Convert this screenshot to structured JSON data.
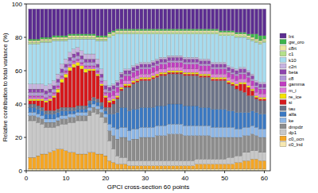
{
  "chart_data": {
    "type": "bar",
    "stacked": true,
    "legend": "right",
    "grid": false,
    "x_label": "GPCI cross-section  60 points",
    "y_label": "Relative contribution to total variance (%)",
    "x": [
      1,
      2,
      3,
      4,
      5,
      6,
      7,
      8,
      9,
      10,
      11,
      12,
      13,
      14,
      15,
      16,
      17,
      18,
      19,
      20,
      21,
      22,
      23,
      24,
      25,
      26,
      27,
      28,
      29,
      30,
      31,
      32,
      33,
      34,
      35,
      36,
      37,
      38,
      39,
      40,
      41,
      42,
      43,
      44,
      45,
      46,
      47,
      48,
      49,
      50,
      51,
      52,
      53,
      54,
      55,
      56,
      57,
      58,
      59,
      60
    ],
    "xlim": [
      0,
      61.5
    ],
    "xticks": [
      0,
      10,
      20,
      30,
      40,
      50,
      60
    ],
    "ylim": [
      0,
      100
    ],
    "yticks": [
      0,
      20,
      40,
      60,
      80,
      100
    ],
    "series": [
      {
        "name": "Int",
        "color": "#5c2d91",
        "values": [
          18,
          18,
          18,
          17,
          17,
          17,
          16,
          16,
          16,
          16,
          15,
          15,
          15,
          15,
          15,
          15,
          15,
          16,
          16,
          16,
          14,
          13,
          12,
          12,
          12,
          12,
          12,
          12,
          12,
          12,
          12,
          12,
          12,
          12,
          12,
          12,
          12,
          12,
          12,
          12,
          12,
          12,
          12,
          12,
          12,
          12,
          12,
          12,
          13,
          13,
          13,
          13,
          14,
          14,
          14,
          15,
          15,
          15,
          16,
          16
        ]
      },
      {
        "name": "gw_oro",
        "color": "#3cb44b",
        "values": [
          1,
          1,
          1,
          1,
          1,
          1,
          1,
          1,
          1,
          1,
          1,
          1,
          1,
          1,
          1,
          1,
          1,
          1,
          1,
          1,
          1,
          1,
          1,
          1,
          1,
          1,
          1,
          1,
          1,
          1,
          1,
          1,
          1,
          1,
          1,
          1,
          1,
          1,
          1,
          1,
          1,
          1,
          1,
          1,
          1,
          1,
          1,
          1,
          1,
          1,
          1,
          1,
          1,
          1,
          1,
          1,
          2,
          3,
          3,
          2
        ]
      },
      {
        "name": "c8rt",
        "color": "#eee8a0",
        "values": [
          1,
          1,
          1,
          1,
          1,
          1,
          1,
          1,
          1,
          1,
          1,
          1,
          1,
          1,
          1,
          1,
          1,
          1,
          1,
          1,
          1,
          1,
          1,
          1,
          1,
          1,
          1,
          1,
          1,
          1,
          1,
          1,
          1,
          1,
          1,
          1,
          1,
          1,
          1,
          1,
          1,
          1,
          1,
          1,
          1,
          1,
          1,
          1,
          1,
          1,
          1,
          1,
          1,
          1,
          1,
          1,
          1,
          1,
          1,
          1
        ]
      },
      {
        "name": "c1",
        "color": "#b5e08a",
        "values": [
          1,
          1,
          1,
          1,
          1,
          1,
          1,
          1,
          1,
          1,
          1,
          1,
          1,
          1,
          1,
          1,
          1,
          1,
          1,
          1,
          1,
          1,
          1,
          1,
          1,
          1,
          1,
          1,
          1,
          1,
          1,
          1,
          1,
          1,
          1,
          1,
          1,
          1,
          1,
          1,
          1,
          1,
          1,
          1,
          1,
          1,
          1,
          1,
          1,
          1,
          1,
          1,
          1,
          1,
          1,
          1,
          1,
          1,
          1,
          1
        ]
      },
      {
        "name": "k10",
        "color": "#a6dcef",
        "values": [
          24,
          24,
          24,
          25,
          26,
          25,
          24,
          20,
          14,
          11,
          8,
          6,
          5,
          7,
          9,
          9,
          9,
          11,
          17,
          24,
          29,
          29,
          28,
          23,
          21,
          21,
          19,
          18,
          17,
          17,
          17,
          16,
          15,
          14,
          14,
          13,
          13,
          13,
          13,
          14,
          14,
          14,
          14,
          15,
          15,
          15,
          17,
          17,
          16,
          16,
          18,
          19,
          19,
          18,
          18,
          19,
          20,
          23,
          23,
          24
        ]
      },
      {
        "name": "c2rt",
        "color": "#c7b3e0",
        "values": [
          3,
          3,
          3,
          3,
          3,
          3,
          3,
          3,
          3,
          3,
          3,
          3,
          3,
          3,
          3,
          3,
          3,
          3,
          3,
          3,
          1,
          1,
          1,
          1,
          1,
          1,
          1,
          1,
          1,
          1,
          1,
          1,
          1,
          1,
          1,
          1,
          1,
          1,
          1,
          1,
          1,
          1,
          1,
          1,
          1,
          1,
          1,
          1,
          1,
          1,
          1,
          1,
          1,
          1,
          1,
          1,
          1,
          1,
          1,
          1
        ]
      },
      {
        "name": "beta",
        "color": "#8e44ad",
        "values": [
          2,
          2,
          2,
          2,
          2,
          2,
          2,
          2,
          2,
          2,
          2,
          2,
          2,
          2,
          2,
          2,
          2,
          2,
          2,
          2,
          2,
          2,
          2,
          2,
          2,
          2,
          2,
          2,
          2,
          2,
          2,
          2,
          2,
          2,
          2,
          2,
          2,
          2,
          2,
          2,
          2,
          2,
          2,
          2,
          2,
          2,
          2,
          2,
          2,
          2,
          2,
          2,
          2,
          2,
          2,
          2,
          2,
          2,
          2,
          2
        ]
      },
      {
        "name": "c8",
        "color": "#b197d8",
        "values": [
          2,
          2,
          2,
          2,
          2,
          2,
          2,
          2,
          2,
          2,
          2,
          2,
          2,
          2,
          2,
          2,
          2,
          2,
          2,
          2,
          1,
          1,
          1,
          1,
          1,
          1,
          1,
          1,
          1,
          1,
          1,
          1,
          1,
          1,
          1,
          1,
          1,
          1,
          1,
          1,
          1,
          1,
          1,
          1,
          1,
          1,
          1,
          1,
          1,
          1,
          1,
          1,
          1,
          1,
          1,
          1,
          1,
          1,
          1,
          1
        ]
      },
      {
        "name": "gamma",
        "color": "#c03cc0",
        "values": [
          1,
          1,
          1,
          1,
          1,
          1,
          1,
          1,
          1,
          1,
          1,
          1,
          1,
          1,
          1,
          1,
          1,
          1,
          1,
          1,
          3,
          3,
          3,
          3,
          3,
          3,
          3,
          3,
          3,
          3,
          3,
          3,
          3,
          3,
          3,
          3,
          3,
          3,
          3,
          3,
          3,
          3,
          3,
          3,
          3,
          3,
          3,
          3,
          3,
          3,
          3,
          3,
          3,
          3,
          3,
          3,
          3,
          3,
          3,
          3
        ]
      },
      {
        "name": "m_i",
        "color": "#e07ad8",
        "values": [
          1,
          1,
          1,
          1,
          1,
          1,
          1,
          1,
          1,
          1,
          1,
          1,
          1,
          1,
          1,
          1,
          1,
          1,
          1,
          1,
          2,
          2,
          2,
          2,
          2,
          2,
          2,
          2,
          2,
          2,
          2,
          2,
          2,
          2,
          2,
          2,
          2,
          2,
          2,
          2,
          2,
          2,
          2,
          2,
          2,
          2,
          2,
          2,
          2,
          2,
          2,
          2,
          2,
          2,
          2,
          2,
          2,
          2,
          2,
          2
        ]
      },
      {
        "name": "re_ice",
        "color": "#f5e400",
        "values": [
          1,
          1,
          1,
          1,
          1,
          1,
          1,
          2,
          2,
          2,
          2,
          2,
          2,
          2,
          2,
          1,
          1,
          1,
          1,
          1,
          1,
          1,
          1,
          1,
          1,
          1,
          1,
          1,
          1,
          1,
          1,
          1,
          1,
          1,
          1,
          1,
          1,
          1,
          1,
          1,
          1,
          1,
          1,
          1,
          1,
          1,
          1,
          1,
          1,
          1,
          1,
          1,
          1,
          1,
          1,
          1,
          1,
          1,
          1,
          1
        ]
      },
      {
        "name": "si",
        "color": "#d7191c",
        "values": [
          2,
          2,
          3,
          4,
          5,
          6,
          8,
          10,
          15,
          18,
          22,
          24,
          24,
          22,
          20,
          18,
          16,
          14,
          10,
          6,
          3,
          2,
          1,
          1,
          1,
          1,
          1,
          1,
          1,
          1,
          1,
          1,
          1,
          1,
          1,
          1,
          1,
          1,
          1,
          1,
          1,
          1,
          1,
          1,
          1,
          1,
          1,
          1,
          1,
          1,
          1,
          1,
          2,
          4,
          5,
          5,
          3,
          1,
          1,
          1
        ]
      },
      {
        "name": "tau",
        "color": "#6b7388",
        "values": [
          2,
          2,
          2,
          2,
          2,
          2,
          2,
          2,
          2,
          2,
          2,
          2,
          2,
          2,
          2,
          2,
          2,
          2,
          2,
          2,
          4,
          6,
          8,
          10,
          12,
          14,
          15,
          16,
          16,
          16,
          16,
          17,
          17,
          18,
          18,
          18,
          18,
          18,
          18,
          18,
          18,
          18,
          18,
          18,
          18,
          18,
          17,
          17,
          17,
          17,
          16,
          15,
          14,
          13,
          12,
          10,
          9,
          8,
          8,
          8
        ]
      },
      {
        "name": "alfa",
        "color": "#3a78c2",
        "values": [
          3,
          3,
          3,
          3,
          3,
          3,
          3,
          3,
          3,
          3,
          2,
          2,
          2,
          2,
          2,
          2,
          2,
          2,
          2,
          2,
          6,
          8,
          10,
          12,
          12,
          12,
          12,
          12,
          12,
          12,
          12,
          12,
          12,
          12,
          12,
          12,
          12,
          12,
          12,
          12,
          12,
          12,
          12,
          11,
          11,
          11,
          11,
          11,
          11,
          11,
          10,
          10,
          10,
          10,
          9,
          9,
          9,
          9,
          9,
          9
        ]
      },
      {
        "name": "ke",
        "color": "#8db7e8",
        "values": [
          2,
          2,
          2,
          2,
          2,
          2,
          2,
          2,
          2,
          2,
          2,
          2,
          2,
          2,
          2,
          2,
          2,
          2,
          2,
          2,
          4,
          5,
          6,
          6,
          6,
          6,
          6,
          6,
          6,
          6,
          6,
          6,
          6,
          6,
          6,
          6,
          6,
          6,
          6,
          6,
          6,
          6,
          6,
          6,
          6,
          6,
          6,
          6,
          6,
          6,
          6,
          6,
          5,
          5,
          5,
          5,
          5,
          5,
          5,
          5
        ]
      },
      {
        "name": "dmpdz",
        "color": "#8c8c8c",
        "values": [
          3,
          3,
          3,
          3,
          3,
          3,
          3,
          3,
          3,
          3,
          3,
          3,
          3,
          3,
          3,
          3,
          3,
          3,
          3,
          3,
          6,
          8,
          10,
          12,
          12,
          12,
          13,
          13,
          14,
          14,
          14,
          14,
          15,
          15,
          15,
          16,
          16,
          16,
          16,
          15,
          15,
          15,
          14,
          14,
          14,
          14,
          13,
          13,
          13,
          13,
          12,
          12,
          11,
          11,
          10,
          10,
          10,
          9,
          9,
          9
        ]
      },
      {
        "name": "dp1",
        "color": "#c8c8c8",
        "values": [
          22,
          22,
          20,
          18,
          16,
          15,
          14,
          14,
          15,
          16,
          18,
          18,
          20,
          20,
          20,
          22,
          24,
          24,
          22,
          20,
          12,
          8,
          5,
          4,
          4,
          3,
          3,
          3,
          3,
          3,
          3,
          3,
          3,
          3,
          3,
          3,
          3,
          3,
          3,
          3,
          3,
          3,
          3,
          3,
          3,
          3,
          3,
          3,
          3,
          3,
          4,
          4,
          4,
          4,
          5,
          5,
          5,
          5,
          5,
          5
        ]
      },
      {
        "name": "c0_ocn",
        "color": "#f5a623",
        "values": [
          7,
          7,
          8,
          9,
          9,
          10,
          11,
          12,
          12,
          11,
          10,
          10,
          9,
          9,
          9,
          10,
          10,
          9,
          9,
          8,
          5,
          4,
          3,
          3,
          3,
          2,
          2,
          2,
          2,
          2,
          2,
          2,
          2,
          2,
          2,
          2,
          2,
          2,
          2,
          2,
          2,
          2,
          3,
          3,
          3,
          3,
          3,
          3,
          3,
          3,
          3,
          3,
          4,
          4,
          5,
          5,
          6,
          6,
          5,
          5
        ]
      },
      {
        "name": "c0_lnd",
        "color": "#f7e8b0",
        "values": [
          1,
          1,
          1,
          1,
          1,
          1,
          1,
          1,
          1,
          1,
          1,
          1,
          1,
          1,
          1,
          1,
          1,
          1,
          1,
          1,
          1,
          1,
          1,
          1,
          1,
          1,
          1,
          1,
          1,
          1,
          1,
          1,
          1,
          1,
          1,
          1,
          1,
          1,
          1,
          1,
          1,
          1,
          1,
          1,
          1,
          1,
          1,
          1,
          1,
          1,
          1,
          1,
          1,
          1,
          1,
          1,
          1,
          1,
          1,
          1
        ]
      }
    ]
  }
}
